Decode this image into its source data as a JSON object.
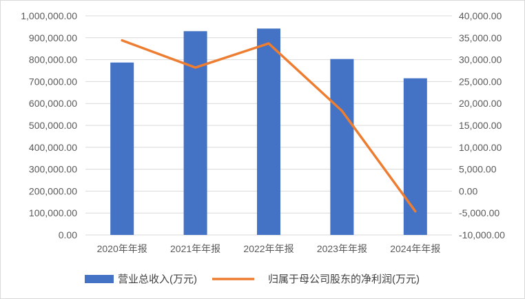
{
  "chart_data": {
    "type": "bar",
    "categories": [
      "2020年年报",
      "2021年年报",
      "2022年年报",
      "2023年年报",
      "2024年年报"
    ],
    "series": [
      {
        "name": "营业总收入(万元)",
        "kind": "bar",
        "axis": "left",
        "color": "#4472C4",
        "values": [
          787000,
          930000,
          942000,
          803000,
          715000
        ]
      },
      {
        "name": "归属于母公司股东的净利润(万元)",
        "kind": "line",
        "axis": "right",
        "color": "#ED7D31",
        "values": [
          34400,
          28200,
          33700,
          18300,
          -4600
        ]
      }
    ],
    "left_axis": {
      "min": 0,
      "max": 1000000,
      "step": 100000,
      "tick_labels": [
        "0.00",
        "100,000.00",
        "200,000.00",
        "300,000.00",
        "400,000.00",
        "500,000.00",
        "600,000.00",
        "700,000.00",
        "800,000.00",
        "900,000.00",
        "1,000,000.00"
      ]
    },
    "right_axis": {
      "min": -10000,
      "max": 40000,
      "step": 5000,
      "tick_labels": [
        "-10,000.00",
        "-5,000.00",
        "0.00",
        "5,000.00",
        "10,000.00",
        "15,000.00",
        "20,000.00",
        "25,000.00",
        "30,000.00",
        "35,000.00",
        "40,000.00"
      ]
    },
    "grid": true,
    "legend_position": "bottom"
  }
}
